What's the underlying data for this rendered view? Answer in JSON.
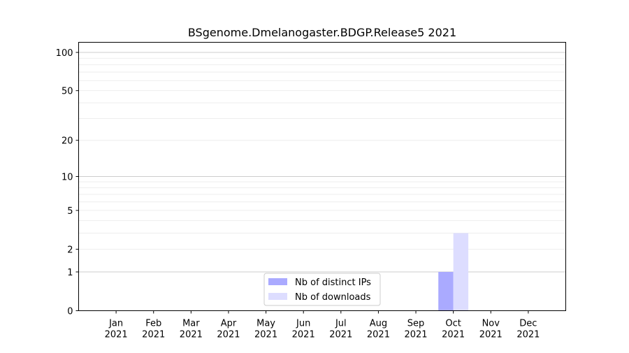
{
  "chart_data": {
    "type": "bar",
    "title": "BSgenome.Dmelanogaster.BDGP.Release5 2021",
    "xlabel": "",
    "ylabel": "",
    "categories": [
      [
        "Jan",
        "2021"
      ],
      [
        "Feb",
        "2021"
      ],
      [
        "Mar",
        "2021"
      ],
      [
        "Apr",
        "2021"
      ],
      [
        "May",
        "2021"
      ],
      [
        "Jun",
        "2021"
      ],
      [
        "Jul",
        "2021"
      ],
      [
        "Aug",
        "2021"
      ],
      [
        "Sep",
        "2021"
      ],
      [
        "Oct",
        "2021"
      ],
      [
        "Nov",
        "2021"
      ],
      [
        "Dec",
        "2021"
      ]
    ],
    "series": [
      {
        "name": "Nb of distinct IPs",
        "color": "#aaaaff",
        "values": [
          0,
          0,
          0,
          0,
          0,
          0,
          0,
          0,
          0,
          1,
          0,
          0
        ]
      },
      {
        "name": "Nb of downloads",
        "color": "#ddddff",
        "values": [
          0,
          0,
          0,
          0,
          0,
          0,
          0,
          0,
          0,
          3,
          0,
          0
        ]
      }
    ],
    "y_scale": "log(1+y)",
    "ylim": [
      0,
      120
    ],
    "y_ticks": [
      0,
      1,
      2,
      5,
      10,
      20,
      50,
      100
    ],
    "grid": true,
    "legend_position": "lower-center"
  }
}
